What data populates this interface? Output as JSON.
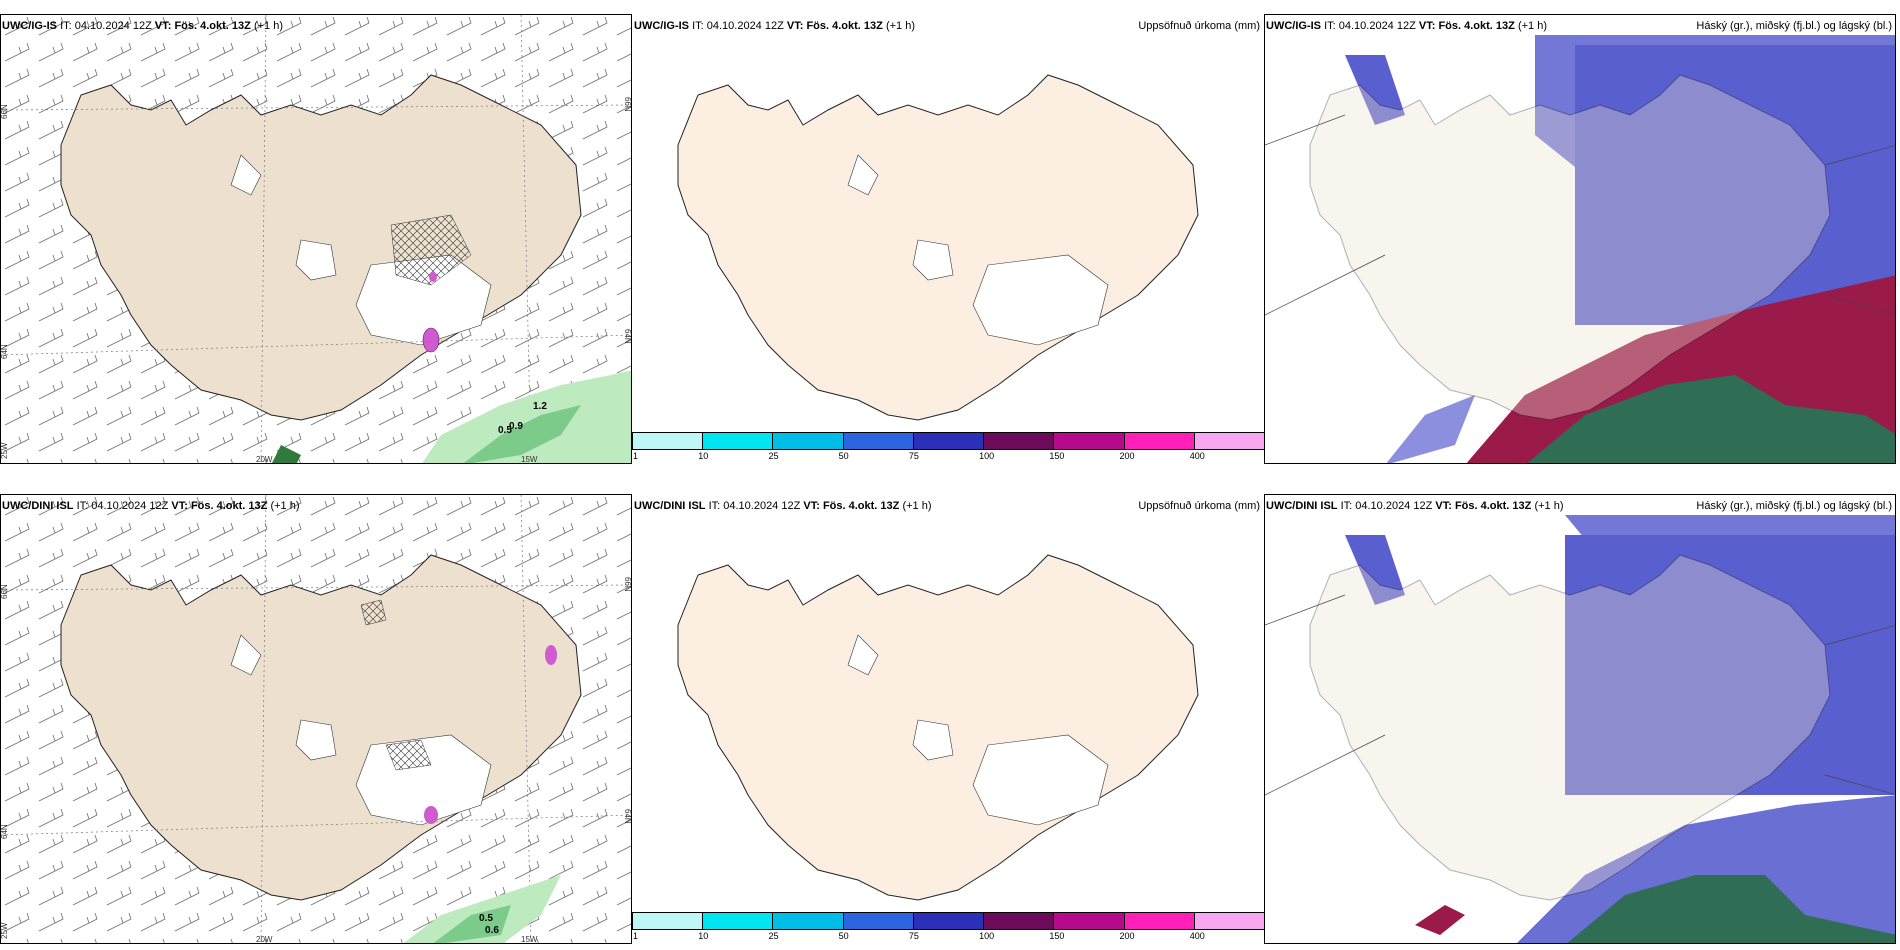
{
  "rows": [
    {
      "model": "UWC/IG-IS",
      "it_label": "IT:",
      "it_value": "04.10.2024 12Z",
      "vt_label": "VT:",
      "vt_value": "Fös. 4.okt. 13Z",
      "lead": "(+1 h)",
      "wind_values": [
        "0.5",
        "0.9",
        "1.2"
      ]
    },
    {
      "model": "UWC/DINI ISL",
      "it_label": "IT:",
      "it_value": "04.10.2024 12Z",
      "vt_label": "VT:",
      "vt_value": "Fös. 4.okt. 13Z",
      "lead": "(+1 h)",
      "wind_values": [
        "0.5",
        "0.6"
      ]
    }
  ],
  "precip_title": "Uppsöfnuð úrkoma (mm)",
  "cloud_title": "Háský (gr.), miðský (fj.bl.) og lágský (bl.)",
  "axis": {
    "lat_left_top": "66N",
    "lat_left_mid": "64N",
    "lat_left_bottom": "65N",
    "lat_right_top": "66N",
    "lat_right_mid": "64N",
    "lon_left": "20W",
    "lon_right": "15W",
    "lat_corner": "25W"
  },
  "colorbar": {
    "ticks": [
      "1",
      "10",
      "25",
      "50",
      "75",
      "100",
      "150",
      "200",
      "400"
    ],
    "colors": [
      "#bff6f8",
      "#00e5ef",
      "#00bde8",
      "#2f64e0",
      "#2c2fb8",
      "#6d0a5a",
      "#b50b8a",
      "#ff1fb9",
      "#f7a6f0"
    ]
  },
  "colors": {
    "land": "#ede0cf",
    "land_precip": "#fcefe2",
    "ocean": "#ffffff",
    "cloud_high": "#5a5fcf",
    "cloud_mid": "#9a1a4a",
    "cloud_low": "#2f6e55",
    "precip_green": "#8fdb9a"
  }
}
